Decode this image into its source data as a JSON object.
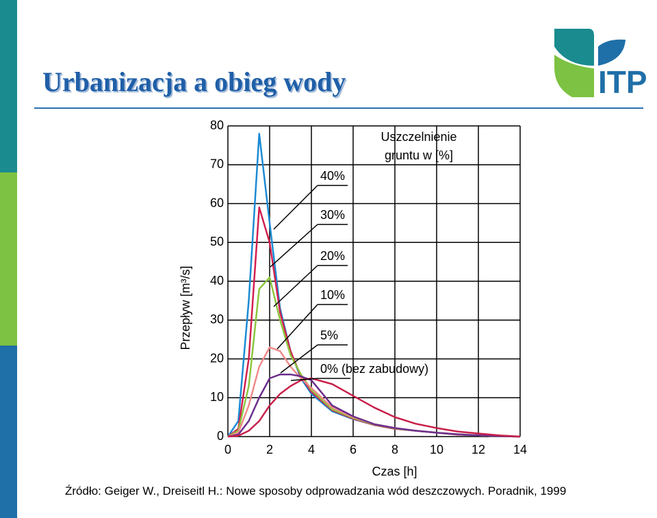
{
  "slide": {
    "title": "Urbanizacja a obieg wody",
    "logo": "ITP",
    "source": "Źródło: Geiger W., Dreiseitl H.: Nowe sposoby odprowadzania wód deszczowych. Poradnik, 1999"
  },
  "chart_data": {
    "type": "line",
    "x_label": "Czas [h]",
    "y_label": "Przepływ [m³/s]",
    "legend_title": [
      "Uszczelnienie",
      "gruntu w [%]"
    ],
    "x": [
      0,
      0.5,
      1,
      1.5,
      2,
      2.5,
      3,
      3.5,
      4,
      5,
      6,
      7,
      8,
      9,
      10,
      11,
      12,
      13,
      14
    ],
    "series": [
      {
        "name": "40%",
        "color": "#1b8ad3",
        "values": [
          0,
          4,
          35,
          78,
          55,
          33,
          22,
          15,
          11,
          6.5,
          4.5,
          3,
          2,
          1.5,
          1,
          0.5,
          0.3,
          0.1,
          0
        ]
      },
      {
        "name": "30%",
        "color": "#d11f4e",
        "values": [
          0,
          2,
          20,
          59,
          50,
          32,
          22,
          15.5,
          11.5,
          6.8,
          4.6,
          3,
          2,
          1.5,
          1,
          0.5,
          0.3,
          0.1,
          0
        ]
      },
      {
        "name": "20%",
        "color": "#8cc63f",
        "values": [
          0,
          1.5,
          13,
          38,
          41,
          30,
          21,
          16,
          12,
          7,
          4.8,
          3.1,
          2.1,
          1.5,
          1,
          0.6,
          0.3,
          0.1,
          0
        ]
      },
      {
        "name": "10%",
        "color": "#f08a8a",
        "values": [
          0,
          1,
          8,
          18,
          23,
          22,
          18,
          15,
          12.5,
          7.5,
          5,
          3.2,
          2.2,
          1.5,
          1,
          0.6,
          0.3,
          0.1,
          0
        ]
      },
      {
        "name": "5%",
        "color": "#6b2d8c",
        "values": [
          0,
          0.5,
          4,
          10,
          15,
          16,
          16,
          15.5,
          14.5,
          8,
          5.2,
          3.2,
          2.2,
          1.5,
          1,
          0.6,
          0.3,
          0.1,
          0
        ]
      },
      {
        "name": "0% (bez zabudowy)",
        "color": "#c8204a",
        "values": [
          0,
          0.2,
          1.5,
          4,
          8,
          11,
          13,
          14.5,
          15,
          13.5,
          10.5,
          7.5,
          5,
          3.3,
          2.2,
          1.3,
          0.8,
          0.3,
          0
        ]
      }
    ],
    "xlim": [
      0,
      14
    ],
    "xticks": [
      0,
      2,
      4,
      6,
      8,
      10,
      12,
      14
    ],
    "ylim": [
      0,
      80
    ],
    "yticks": [
      0,
      10,
      20,
      30,
      40,
      50,
      60,
      70,
      80
    ],
    "grid": true
  }
}
